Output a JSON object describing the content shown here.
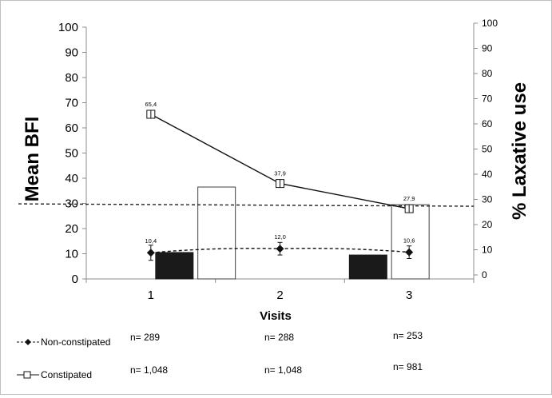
{
  "chart_data": {
    "type": "bar+line",
    "title": "",
    "xlabel": "Visits",
    "ylabel_left": "Mean BFI",
    "ylabel_right": "% Laxative use",
    "categories": [
      "1",
      "2",
      "3"
    ],
    "ylim_left": [
      0,
      100
    ],
    "ylim_right": [
      0,
      100
    ],
    "yticks_left": [
      "0",
      "10",
      "20",
      "30",
      "40",
      "50",
      "60",
      "70",
      "80",
      "90",
      "100"
    ],
    "yticks_right": [
      "0",
      "10",
      "20",
      "30",
      "40",
      "50",
      "60",
      "70",
      "80",
      "90",
      "100"
    ],
    "bars": [
      {
        "category": "1",
        "color": "black",
        "value": 10.5
      },
      {
        "category": "1.5",
        "color": "white",
        "value": 36.5
      },
      {
        "category": "2.5",
        "color": "black",
        "value": 9.5
      },
      {
        "category": "3",
        "color": "white",
        "value": 29.5
      }
    ],
    "series": [
      {
        "name": "Non-constipated",
        "style": "dashed",
        "marker": "diamond",
        "values": [
          10.4,
          12.0,
          10.6
        ],
        "labels": [
          "10,4",
          "12,0",
          "10,6"
        ],
        "error": [
          3,
          2.5,
          2.5
        ]
      },
      {
        "name": "Constipated",
        "style": "solid",
        "marker": "open-square",
        "values": [
          65.4,
          37.9,
          27.9
        ],
        "labels": [
          "65,4",
          "37,9",
          "27,9"
        ]
      }
    ],
    "reference_line": {
      "value": 29.5,
      "style": "dashed"
    },
    "n_table": {
      "Non-constipated": [
        "n= 289",
        "n= 288",
        "n= 253"
      ],
      "Constipated": [
        "n= 1,048",
        "n= 1,048",
        "n= 981"
      ]
    },
    "grid": false,
    "legend_position": "bottom-left"
  }
}
